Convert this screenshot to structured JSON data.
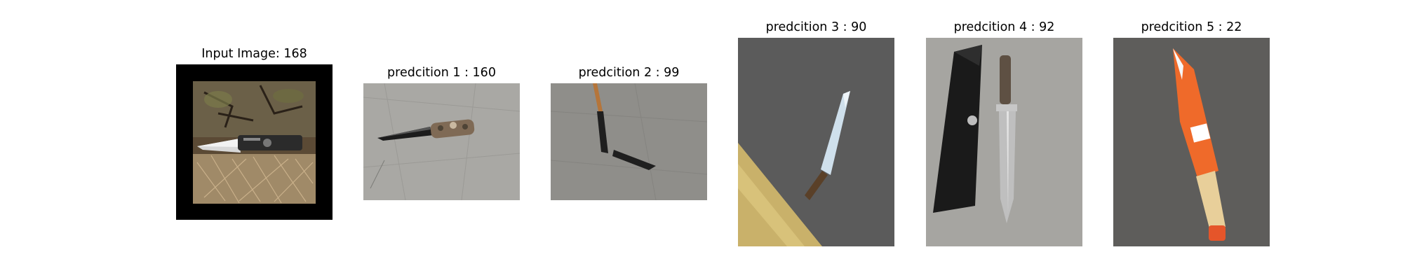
{
  "panels": [
    {
      "title": "Input Image: 168",
      "depicts": "folding knife on leaves and pine needles"
    },
    {
      "title": "predcition 1 : 160",
      "depicts": "folding knife with camo handle on concrete"
    },
    {
      "title": "predcition 2 : 99",
      "depicts": "small knife with sheath on concrete"
    },
    {
      "title": "predcition 3 : 90",
      "depicts": "knife on asphalt near yellow line"
    },
    {
      "title": "predcition 4 : 92",
      "depicts": "large knife with black sheath on concrete"
    },
    {
      "title": "predcition 5 : 22",
      "depicts": "orange machete on asphalt"
    }
  ]
}
